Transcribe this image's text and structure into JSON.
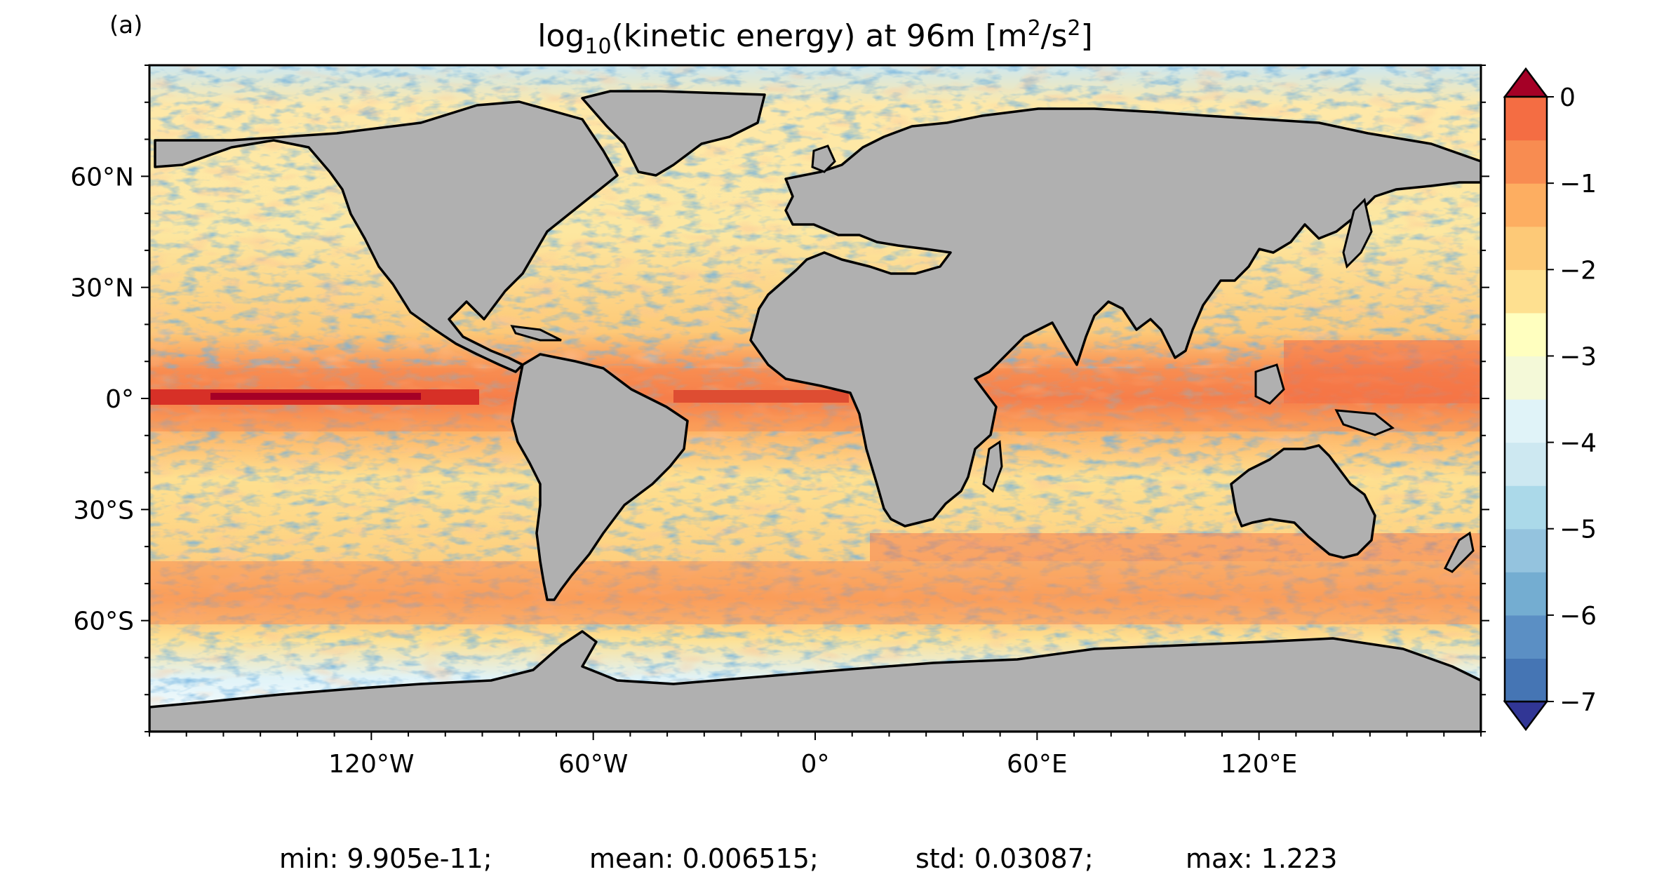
{
  "chart_data": {
    "type": "heatmap",
    "panel_label": "(a)",
    "title_main": "log",
    "title_sub": "10",
    "title_rest": "(kinetic energy) at 96m [m",
    "title_sup1": "2",
    "title_slash": "/s",
    "title_sup2": "2",
    "title_close": "]",
    "x_ticks": [
      {
        "lon": -120,
        "label": "120°W"
      },
      {
        "lon": -60,
        "label": "60°W"
      },
      {
        "lon": 0,
        "label": "0°"
      },
      {
        "lon": 60,
        "label": "60°E"
      },
      {
        "lon": 120,
        "label": "120°E"
      }
    ],
    "y_ticks": [
      {
        "lat": 60,
        "label": "60°N"
      },
      {
        "lat": 30,
        "label": "30°N"
      },
      {
        "lat": 0,
        "label": "0°"
      },
      {
        "lat": -30,
        "label": "30°S"
      },
      {
        "lat": -60,
        "label": "60°S"
      }
    ],
    "xlim": [
      -180,
      180
    ],
    "ylim": [
      -90,
      90
    ],
    "colorbar": {
      "range": [
        -7,
        0
      ],
      "step": 0.5,
      "extend": "both",
      "tick_labels": [
        "0",
        "−1",
        "−2",
        "−3",
        "−4",
        "−5",
        "−6",
        "−7"
      ],
      "tick_values": [
        0,
        -1,
        -2,
        -3,
        -4,
        -5,
        -6,
        -7
      ],
      "colors_low_to_high": [
        "#313695",
        "#4575b4",
        "#5b8fc4",
        "#74add1",
        "#94c3de",
        "#abd9e9",
        "#cde8f1",
        "#e0f3f8",
        "#f4f9d8",
        "#ffffbf",
        "#fee090",
        "#fdc977",
        "#fdae61",
        "#f88c51",
        "#f46d43",
        "#de4d32",
        "#d73027",
        "#a50026"
      ]
    },
    "land_color": "#b0b0b0",
    "stats": [
      {
        "label": "min: 9.905e-11;"
      },
      {
        "label": "mean: 0.006515;"
      },
      {
        "label": "std: 0.03087;"
      },
      {
        "label": "max: 1.223"
      }
    ]
  }
}
